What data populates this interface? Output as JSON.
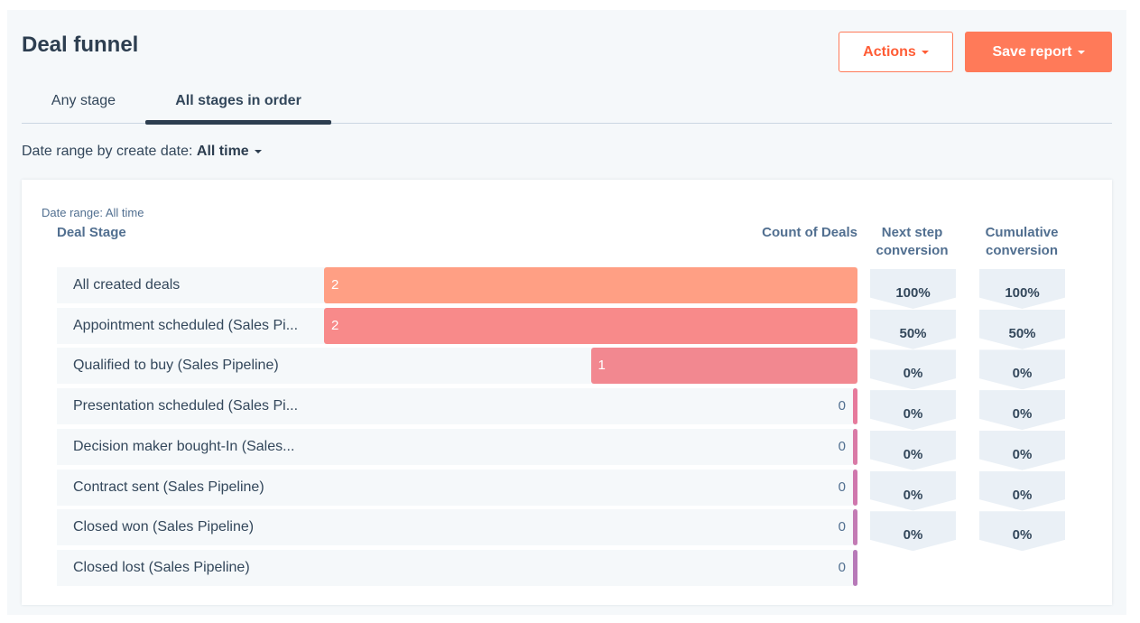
{
  "header": {
    "title": "Deal funnel",
    "actions_label": "Actions",
    "save_label": "Save report"
  },
  "tabs": [
    {
      "label": "Any stage",
      "active": false
    },
    {
      "label": "All stages in order",
      "active": true
    }
  ],
  "filter": {
    "prefix": "Date range by create date:",
    "value": "All time"
  },
  "card": {
    "date_note": "Date range: All time",
    "col_stage": "Deal Stage",
    "col_count": "Count of Deals",
    "col_next": "Next step conversion",
    "col_cum": "Cumulative conversion"
  },
  "colors": {
    "accent": "#ff7a59",
    "bar_colors": [
      "#ff9f84",
      "#f88a8a",
      "#f28890",
      "#e67a9c",
      "#d97aa6",
      "#cf77ad",
      "#c37bb4",
      "#b779b8"
    ]
  },
  "chart_data": {
    "type": "bar",
    "orientation": "horizontal",
    "categories": [
      "All created deals",
      "Appointment scheduled (Sales Pi...",
      "Qualified to buy (Sales Pipeline)",
      "Presentation scheduled (Sales Pi...",
      "Decision maker bought-In (Sales...",
      "Contract sent (Sales Pipeline)",
      "Closed won (Sales Pipeline)",
      "Closed lost (Sales Pipeline)"
    ],
    "values": [
      2,
      2,
      1,
      0,
      0,
      0,
      0,
      0
    ],
    "xlim": [
      0,
      2
    ],
    "next_step_conversion": [
      "100%",
      "50%",
      "0%",
      "0%",
      "0%",
      "0%",
      "0%"
    ],
    "cumulative_conversion": [
      "100%",
      "50%",
      "0%",
      "0%",
      "0%",
      "0%",
      "0%"
    ]
  }
}
